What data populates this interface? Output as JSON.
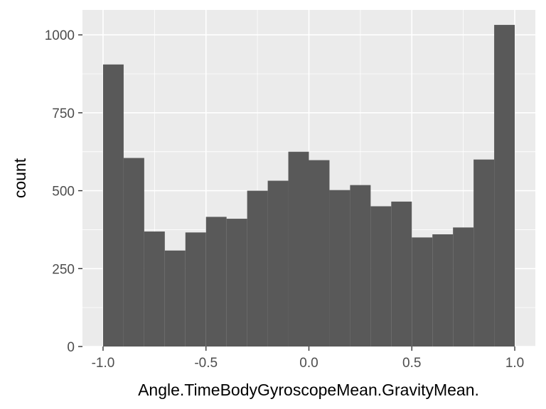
{
  "chart_data": {
    "type": "bar",
    "subtype": "histogram",
    "xlabel": "Angle.TimeBodyGyroscopeMean.GravityMean.",
    "ylabel": "count",
    "xlim": [
      -1.1,
      1.1
    ],
    "ylim": [
      0,
      1080
    ],
    "x_ticks": [
      "-1.0",
      "-0.5",
      "0.0",
      "0.5",
      "1.0"
    ],
    "y_ticks": [
      "0",
      "250",
      "500",
      "750",
      "1000"
    ],
    "grid": true,
    "legend": "none",
    "bins": [
      {
        "x0": -1.0,
        "x1": -0.9,
        "count": 905
      },
      {
        "x0": -0.9,
        "x1": -0.8,
        "count": 605
      },
      {
        "x0": -0.8,
        "x1": -0.7,
        "count": 369
      },
      {
        "x0": -0.7,
        "x1": -0.6,
        "count": 308
      },
      {
        "x0": -0.6,
        "x1": -0.5,
        "count": 366
      },
      {
        "x0": -0.5,
        "x1": -0.4,
        "count": 416
      },
      {
        "x0": -0.4,
        "x1": -0.3,
        "count": 410
      },
      {
        "x0": -0.3,
        "x1": -0.2,
        "count": 500
      },
      {
        "x0": -0.2,
        "x1": -0.1,
        "count": 532
      },
      {
        "x0": -0.1,
        "x1": 0.0,
        "count": 625
      },
      {
        "x0": 0.0,
        "x1": 0.1,
        "count": 598
      },
      {
        "x0": 0.1,
        "x1": 0.2,
        "count": 502
      },
      {
        "x0": 0.2,
        "x1": 0.3,
        "count": 518
      },
      {
        "x0": 0.3,
        "x1": 0.4,
        "count": 450
      },
      {
        "x0": 0.4,
        "x1": 0.5,
        "count": 465
      },
      {
        "x0": 0.5,
        "x1": 0.6,
        "count": 350
      },
      {
        "x0": 0.6,
        "x1": 0.7,
        "count": 360
      },
      {
        "x0": 0.7,
        "x1": 0.8,
        "count": 382
      },
      {
        "x0": 0.8,
        "x1": 0.9,
        "count": 600
      },
      {
        "x0": 0.9,
        "x1": 1.0,
        "count": 1032
      }
    ],
    "colors": {
      "panel": "#ebebeb",
      "grid_major": "#ffffff",
      "bar": "#595959",
      "tick": "#333333"
    }
  }
}
